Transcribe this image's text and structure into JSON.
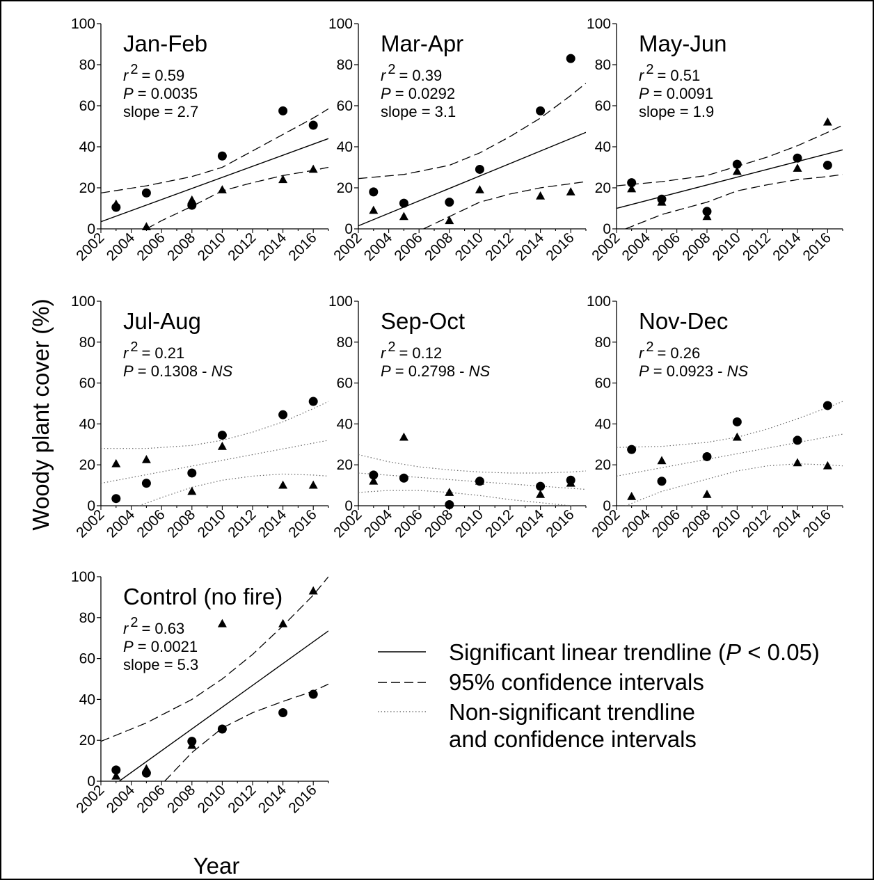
{
  "figure": {
    "ylabel": "Woody plant cover (%)",
    "xlabel": "Year"
  },
  "legend": {
    "items": [
      {
        "style": "solid",
        "label_pre": "Significant linear trendline (",
        "label_italic": "P",
        "label_post": " < 0.05)"
      },
      {
        "style": "dashed",
        "label": "95% confidence intervals"
      },
      {
        "style": "dotted",
        "label_line1": "Non-significant trendline",
        "label_line2": "and confidence intervals"
      }
    ]
  },
  "chart_data": [
    {
      "type": "scatter",
      "title": "Jan-Feb",
      "r2": "= 0.59",
      "p": "= 0.0035",
      "p_suffix": "",
      "slope": "slope = 2.7",
      "significant": true,
      "x_ticks": [
        "2002",
        "2004",
        "2006",
        "2008",
        "2010",
        "2012",
        "2014",
        "2016"
      ],
      "y_ticks": [
        "0",
        "20",
        "40",
        "60",
        "80",
        "100"
      ],
      "xlim": [
        2002,
        2017
      ],
      "ylim": [
        0,
        100
      ],
      "series": [
        {
          "marker": "circle",
          "points": [
            [
              2003,
              10.5
            ],
            [
              2005,
              17.5
            ],
            [
              2008,
              11.5
            ],
            [
              2010,
              35.5
            ],
            [
              2014,
              57.5
            ],
            [
              2016,
              50.5
            ]
          ]
        },
        {
          "marker": "triangle",
          "points": [
            [
              2003,
              12
            ],
            [
              2005,
              1
            ],
            [
              2008,
              14
            ],
            [
              2010,
              19
            ],
            [
              2014,
              24
            ],
            [
              2016,
              29
            ]
          ]
        }
      ],
      "trend": [
        [
          2002,
          3.5
        ],
        [
          2017,
          44
        ]
      ],
      "ci_upper": [
        [
          2002,
          17.5
        ],
        [
          2005,
          21
        ],
        [
          2008,
          25.5
        ],
        [
          2010,
          30
        ],
        [
          2012,
          38
        ],
        [
          2014,
          46
        ],
        [
          2016,
          54
        ],
        [
          2017,
          58.5
        ]
      ],
      "ci_lower": [
        [
          2005,
          0
        ],
        [
          2006,
          4
        ],
        [
          2008,
          11
        ],
        [
          2010,
          18.5
        ],
        [
          2012,
          22.5
        ],
        [
          2014,
          26
        ],
        [
          2016,
          28.5
        ],
        [
          2017,
          30
        ]
      ]
    },
    {
      "type": "scatter",
      "title": "Mar-Apr",
      "r2": "= 0.39",
      "p": "= 0.0292",
      "p_suffix": "",
      "slope": "slope = 3.1",
      "significant": true,
      "x_ticks": [
        "2002",
        "2004",
        "2006",
        "2008",
        "2010",
        "2012",
        "2014",
        "2016"
      ],
      "y_ticks": [
        "0",
        "20",
        "40",
        "60",
        "80",
        "100"
      ],
      "xlim": [
        2002,
        2017
      ],
      "ylim": [
        0,
        100
      ],
      "series": [
        {
          "marker": "circle",
          "points": [
            [
              2003,
              18
            ],
            [
              2005,
              12.5
            ],
            [
              2008,
              13
            ],
            [
              2010,
              29
            ],
            [
              2014,
              57.5
            ],
            [
              2016,
              83
            ]
          ]
        },
        {
          "marker": "triangle",
          "points": [
            [
              2003,
              9
            ],
            [
              2005,
              6
            ],
            [
              2008,
              4
            ],
            [
              2010,
              19
            ],
            [
              2014,
              16
            ],
            [
              2016,
              18
            ]
          ]
        }
      ],
      "trend": [
        [
          2002,
          1.5
        ],
        [
          2017,
          47
        ]
      ],
      "ci_upper": [
        [
          2002,
          24.5
        ],
        [
          2005,
          26.5
        ],
        [
          2008,
          31
        ],
        [
          2010,
          37
        ],
        [
          2012,
          45
        ],
        [
          2014,
          54
        ],
        [
          2016,
          65
        ],
        [
          2017,
          71
        ]
      ],
      "ci_lower": [
        [
          2006.3,
          0
        ],
        [
          2008,
          6
        ],
        [
          2010,
          13
        ],
        [
          2012,
          17
        ],
        [
          2014,
          20
        ],
        [
          2016,
          22
        ],
        [
          2017,
          23
        ]
      ]
    },
    {
      "type": "scatter",
      "title": "May-Jun",
      "r2": "= 0.51",
      "p": "= 0.0091",
      "p_suffix": "",
      "slope": "slope = 1.9",
      "significant": true,
      "x_ticks": [
        "2002",
        "2004",
        "2006",
        "2008",
        "2010",
        "2012",
        "2014",
        "2016"
      ],
      "y_ticks": [
        "0",
        "20",
        "40",
        "60",
        "80",
        "100"
      ],
      "xlim": [
        2002,
        2017
      ],
      "ylim": [
        0,
        100
      ],
      "series": [
        {
          "marker": "circle",
          "points": [
            [
              2003,
              22.5
            ],
            [
              2005,
              14.5
            ],
            [
              2008,
              8.5
            ],
            [
              2010,
              31.5
            ],
            [
              2014,
              34.5
            ],
            [
              2016,
              31
            ]
          ]
        },
        {
          "marker": "triangle",
          "points": [
            [
              2003,
              19.5
            ],
            [
              2005,
              13
            ],
            [
              2008,
              6
            ],
            [
              2010,
              28
            ],
            [
              2014,
              29.5
            ],
            [
              2016,
              52
            ]
          ]
        }
      ],
      "trend": [
        [
          2002,
          10
        ],
        [
          2017,
          38.5
        ]
      ],
      "ci_upper": [
        [
          2002,
          21
        ],
        [
          2005,
          23
        ],
        [
          2008,
          26
        ],
        [
          2010,
          30.5
        ],
        [
          2012,
          35
        ],
        [
          2014,
          40.5
        ],
        [
          2016,
          47
        ],
        [
          2017,
          50.5
        ]
      ],
      "ci_lower": [
        [
          2002.6,
          0
        ],
        [
          2005,
          7
        ],
        [
          2008,
          13
        ],
        [
          2010,
          18.5
        ],
        [
          2012,
          21.5
        ],
        [
          2014,
          24
        ],
        [
          2016,
          25.5
        ],
        [
          2017,
          26.5
        ]
      ]
    },
    {
      "type": "scatter",
      "title": "Jul-Aug",
      "r2": "= 0.21",
      "p": "= 0.1308 - ",
      "p_suffix": "NS",
      "slope": "",
      "significant": false,
      "x_ticks": [
        "2002",
        "2004",
        "2006",
        "2008",
        "2010",
        "2012",
        "2014",
        "2016"
      ],
      "y_ticks": [
        "0",
        "20",
        "40",
        "60",
        "80",
        "100"
      ],
      "xlim": [
        2002,
        2017
      ],
      "ylim": [
        0,
        100
      ],
      "series": [
        {
          "marker": "circle",
          "points": [
            [
              2003,
              3.5
            ],
            [
              2005,
              11
            ],
            [
              2008,
              16
            ],
            [
              2010,
              34.5
            ],
            [
              2014,
              44.5
            ],
            [
              2016,
              51
            ]
          ]
        },
        {
          "marker": "triangle",
          "points": [
            [
              2003,
              20.5
            ],
            [
              2005,
              22.5
            ],
            [
              2008,
              7
            ],
            [
              2010,
              29
            ],
            [
              2014,
              10
            ],
            [
              2016,
              10
            ]
          ]
        }
      ],
      "trend": [
        [
          2002,
          11
        ],
        [
          2017,
          32
        ]
      ],
      "ci_upper": [
        [
          2002,
          28
        ],
        [
          2005,
          28
        ],
        [
          2008,
          29.5
        ],
        [
          2010,
          32
        ],
        [
          2012,
          36
        ],
        [
          2014,
          41
        ],
        [
          2016,
          47.5
        ],
        [
          2017,
          51
        ]
      ],
      "ci_lower": [
        [
          2004.5,
          0
        ],
        [
          2006,
          4
        ],
        [
          2008,
          9
        ],
        [
          2010,
          12.5
        ],
        [
          2012,
          14.5
        ],
        [
          2014,
          15.5
        ],
        [
          2016,
          15
        ],
        [
          2017,
          14.5
        ]
      ]
    },
    {
      "type": "scatter",
      "title": "Sep-Oct",
      "r2": "= 0.12",
      "p": "= 0.2798 - ",
      "p_suffix": "NS",
      "slope": "",
      "significant": false,
      "x_ticks": [
        "2002",
        "2004",
        "2006",
        "2008",
        "2010",
        "2012",
        "2014",
        "2016"
      ],
      "y_ticks": [
        "0",
        "20",
        "40",
        "60",
        "80",
        "100"
      ],
      "xlim": [
        2002,
        2017
      ],
      "ylim": [
        0,
        100
      ],
      "series": [
        {
          "marker": "circle",
          "points": [
            [
              2003,
              15
            ],
            [
              2005,
              13.5
            ],
            [
              2008,
              0.5
            ],
            [
              2010,
              12
            ],
            [
              2014,
              9.5
            ],
            [
              2016,
              12.5
            ]
          ]
        },
        {
          "marker": "triangle",
          "points": [
            [
              2003,
              12
            ],
            [
              2005,
              33.5
            ],
            [
              2008,
              6.5
            ],
            [
              2010,
              12
            ],
            [
              2014,
              5.5
            ],
            [
              2016,
              11
            ]
          ]
        }
      ],
      "trend": [
        [
          2002,
          16
        ],
        [
          2017,
          8
        ]
      ],
      "ci_upper": [
        [
          2002,
          25
        ],
        [
          2004,
          21.5
        ],
        [
          2006,
          19
        ],
        [
          2008,
          17.5
        ],
        [
          2010,
          16.5
        ],
        [
          2012,
          16
        ],
        [
          2014,
          16
        ],
        [
          2016,
          16.5
        ],
        [
          2017,
          17
        ]
      ],
      "ci_lower": [
        [
          2002,
          6.5
        ],
        [
          2004,
          7.5
        ],
        [
          2006,
          7.5
        ],
        [
          2008,
          6.5
        ],
        [
          2010,
          5
        ],
        [
          2012,
          3
        ],
        [
          2014,
          1.5
        ],
        [
          2016,
          0
        ],
        [
          2017,
          -1
        ]
      ]
    },
    {
      "type": "scatter",
      "title": "Nov-Dec",
      "r2": "= 0.26",
      "p": "= 0.0923 - ",
      "p_suffix": "NS",
      "slope": "",
      "significant": false,
      "x_ticks": [
        "2002",
        "2004",
        "2006",
        "2008",
        "2010",
        "2012",
        "2014",
        "2016"
      ],
      "y_ticks": [
        "0",
        "20",
        "40",
        "60",
        "80",
        "100"
      ],
      "xlim": [
        2002,
        2017
      ],
      "ylim": [
        0,
        100
      ],
      "series": [
        {
          "marker": "circle",
          "points": [
            [
              2003,
              27.5
            ],
            [
              2005,
              12
            ],
            [
              2008,
              24
            ],
            [
              2010,
              41
            ],
            [
              2014,
              32
            ],
            [
              2016,
              49
            ]
          ]
        },
        {
          "marker": "triangle",
          "points": [
            [
              2003,
              4.5
            ],
            [
              2005,
              22
            ],
            [
              2008,
              5.5
            ],
            [
              2010,
              33.5
            ],
            [
              2014,
              21
            ],
            [
              2016,
              19.5
            ]
          ]
        }
      ],
      "trend": [
        [
          2002,
          14.5
        ],
        [
          2017,
          35
        ]
      ],
      "ci_upper": [
        [
          2002,
          28.5
        ],
        [
          2005,
          29
        ],
        [
          2008,
          31
        ],
        [
          2010,
          33.5
        ],
        [
          2012,
          37.5
        ],
        [
          2014,
          42.5
        ],
        [
          2016,
          48
        ],
        [
          2017,
          51
        ]
      ],
      "ci_lower": [
        [
          2002.6,
          0
        ],
        [
          2005,
          7
        ],
        [
          2008,
          13
        ],
        [
          2010,
          17
        ],
        [
          2012,
          19.5
        ],
        [
          2014,
          20.5
        ],
        [
          2016,
          20
        ],
        [
          2017,
          19.5
        ]
      ]
    },
    {
      "type": "scatter",
      "title": "Control (no fire)",
      "r2": "= 0.63",
      "p": "= 0.0021",
      "p_suffix": "",
      "slope": "slope = 5.3",
      "significant": true,
      "x_ticks": [
        "2002",
        "2004",
        "2006",
        "2008",
        "2010",
        "2012",
        "2014",
        "2016"
      ],
      "y_ticks": [
        "0",
        "20",
        "40",
        "60",
        "80",
        "100"
      ],
      "xlim": [
        2002,
        2017
      ],
      "ylim": [
        0,
        100
      ],
      "series": [
        {
          "marker": "circle",
          "points": [
            [
              2003,
              5.5
            ],
            [
              2005,
              4
            ],
            [
              2008,
              19.5
            ],
            [
              2010,
              25.5
            ],
            [
              2014,
              33.5
            ],
            [
              2016,
              42.5
            ]
          ]
        },
        {
          "marker": "triangle",
          "points": [
            [
              2003,
              2.5
            ],
            [
              2005,
              6
            ],
            [
              2008,
              17.5
            ],
            [
              2010,
              77
            ],
            [
              2014,
              77
            ],
            [
              2016,
              93
            ]
          ]
        }
      ],
      "trend": [
        [
          2003.2,
          0
        ],
        [
          2017,
          73.5
        ]
      ],
      "ci_upper": [
        [
          2002,
          19.5
        ],
        [
          2005,
          28.5
        ],
        [
          2008,
          40
        ],
        [
          2010,
          50
        ],
        [
          2012,
          62
        ],
        [
          2014,
          76
        ],
        [
          2016,
          91
        ],
        [
          2017,
          100
        ]
      ],
      "ci_lower": [
        [
          2006.2,
          0
        ],
        [
          2008,
          14
        ],
        [
          2010,
          26
        ],
        [
          2012,
          33.5
        ],
        [
          2014,
          39
        ],
        [
          2016,
          44
        ],
        [
          2017,
          47.5
        ]
      ]
    }
  ]
}
